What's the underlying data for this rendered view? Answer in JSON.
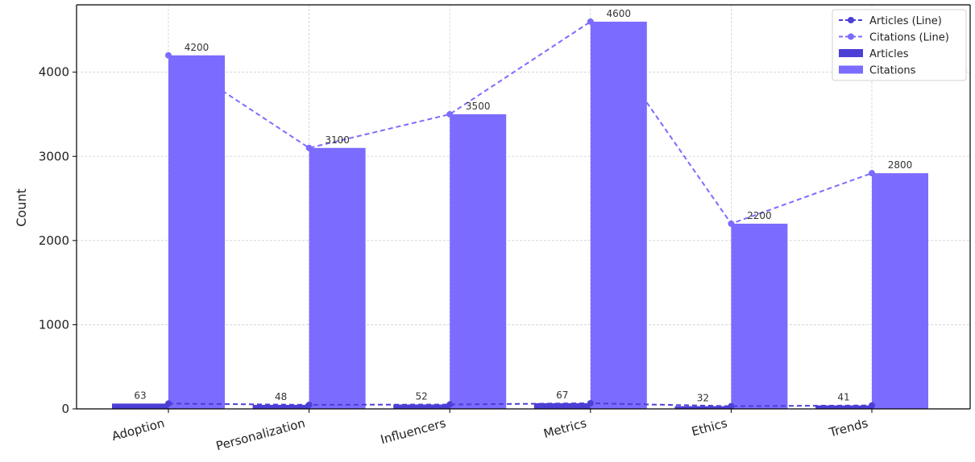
{
  "chart_data": {
    "type": "bar",
    "categories": [
      "Adoption",
      "Personalization",
      "Influencers",
      "Metrics",
      "Ethics",
      "Trends"
    ],
    "series": [
      {
        "name": "Articles",
        "kind": "bar",
        "values": [
          63,
          48,
          52,
          67,
          32,
          41
        ],
        "color": "#4c3fd6"
      },
      {
        "name": "Citations",
        "kind": "bar",
        "values": [
          4200,
          3100,
          3500,
          4600,
          2200,
          2800
        ],
        "color": "#7b6cff"
      },
      {
        "name": "Articles (Line)",
        "kind": "line",
        "values": [
          63,
          48,
          52,
          67,
          32,
          41
        ],
        "color": "#4c3fd6"
      },
      {
        "name": "Citations (Line)",
        "kind": "line",
        "values": [
          4200,
          3100,
          3500,
          4600,
          2200,
          2800
        ],
        "color": "#7b6cff"
      }
    ],
    "data_labels": {
      "articles": [
        "63",
        "48",
        "52",
        "67",
        "32",
        "41"
      ],
      "citations": [
        "4200",
        "3100",
        "3500",
        "4600",
        "2200",
        "2800"
      ]
    },
    "title": "",
    "xlabel": "",
    "ylabel": "Count",
    "ylim": [
      0,
      4800
    ],
    "yticks": [
      "0",
      "1000",
      "2000",
      "3000",
      "4000"
    ],
    "grid": true,
    "legend": {
      "position": "top-right",
      "entries": [
        "Articles (Line)",
        "Citations (Line)",
        "Articles",
        "Citations"
      ]
    }
  }
}
